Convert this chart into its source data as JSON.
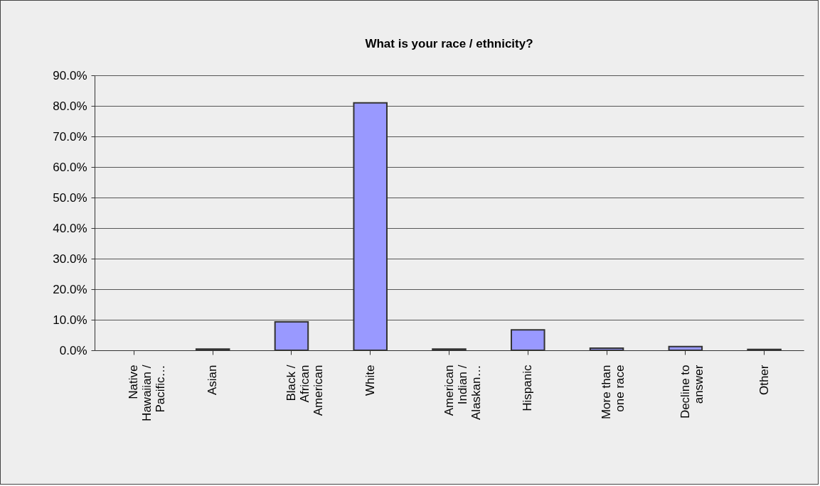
{
  "chart_data": {
    "type": "bar",
    "title": "What is your race / ethnicity?",
    "categories": [
      "Native Hawaiian / Pacific…",
      "Asian",
      "Black / African American",
      "White",
      "American Indian / Alaskan…",
      "Hispanic",
      "More than one race",
      "Decline to answer",
      "Other"
    ],
    "values": [
      0,
      0.4,
      9.3,
      81.0,
      0.4,
      6.7,
      0.7,
      1.2,
      0.3
    ],
    "color": "#9999ff",
    "ylim": [
      0,
      90
    ],
    "yticks": [
      {
        "value": 0,
        "label": "0.0%"
      },
      {
        "value": 10,
        "label": "10.0%"
      },
      {
        "value": 20,
        "label": "20.0%"
      },
      {
        "value": 30,
        "label": "30.0%"
      },
      {
        "value": 40,
        "label": "40.0%"
      },
      {
        "value": 50,
        "label": "50.0%"
      },
      {
        "value": 60,
        "label": "60.0%"
      },
      {
        "value": 70,
        "label": "70.0%"
      },
      {
        "value": 80,
        "label": "80.0%"
      },
      {
        "value": 90,
        "label": "90.0%"
      }
    ],
    "grid": "y"
  }
}
